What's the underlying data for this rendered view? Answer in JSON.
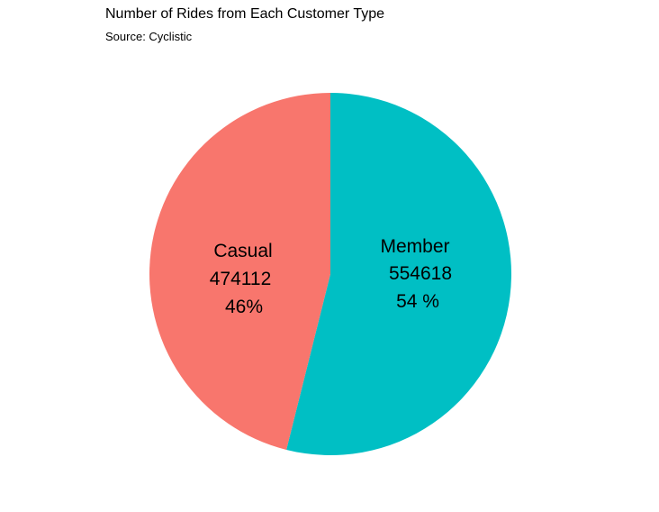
{
  "chart_data": {
    "type": "pie",
    "title": "Number of Rides from Each Customer Type",
    "subtitle": "Source: Cyclistic",
    "slices": [
      {
        "name": "Member",
        "value": 554618,
        "percent_label": "54 %",
        "color": "#00BFC4"
      },
      {
        "name": "Casual",
        "value": 474112,
        "percent_label": "46%",
        "color": "#F8766D"
      }
    ],
    "legend": "none"
  }
}
